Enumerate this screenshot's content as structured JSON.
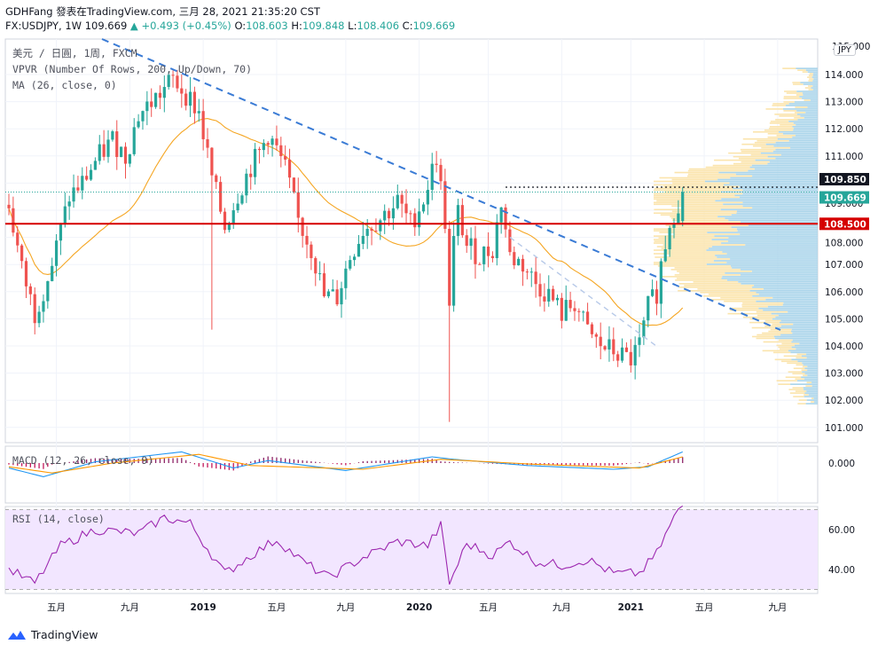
{
  "header": {
    "line1": "GDHFang 發表在TradingView.com, 三月 28, 2021 21:35:20 CST",
    "symbol": "FX:USDJPY, 1W",
    "last": "109.669",
    "change": "+0.493 (+0.45%)",
    "o_label": "O:",
    "o": "108.603",
    "h_label": "H:",
    "h": "109.848",
    "l_label": "L:",
    "l": "108.406",
    "c_label": "C:",
    "c": "109.669"
  },
  "legend": {
    "main": "美元 / 日圓, 1周, FXCM",
    "vpvr": "VPVR (Number Of Rows, 200, Up/Down, 70)",
    "ma": "MA (26, close, 0)",
    "macd": "MACD (12, 26, close, 9)",
    "rsi": "RSI (14, close)"
  },
  "currency_badge": "JPY",
  "brand": "TradingView",
  "colors": {
    "up": "#26a69a",
    "down": "#ef5350",
    "ma": "#f5a623",
    "trend": "#3a7bd5",
    "support": "#d50000",
    "rsi": "#9c27b0",
    "rsi_band": "#f2e6ff",
    "macd": "#2196f3",
    "signal": "#ff9800",
    "vpvr_up": "#a9d4ea",
    "vpvr_down": "#fbe4ac"
  },
  "chart_data": [
    {
      "type": "candlestick",
      "title": "美元 / 日圓, 1周, FXCM",
      "ylim": [
        100.4,
        115.1
      ],
      "y_ticks": [
        "101.000",
        "102.000",
        "103.000",
        "104.000",
        "105.000",
        "106.000",
        "107.000",
        "108.000",
        "109.000",
        "110.000",
        "111.000",
        "112.000",
        "113.000",
        "114.000"
      ],
      "x_ticks": [
        "五月",
        "九月",
        "2019",
        "五月",
        "九月",
        "2020",
        "五月",
        "九月",
        "2021",
        "五月",
        "九月"
      ],
      "price_labels": [
        {
          "value": 109.85,
          "text": "109.850",
          "color": "#131722"
        },
        {
          "value": 109.669,
          "text": "109.669",
          "color": "#26a69a"
        },
        {
          "value": 108.5,
          "text": "108.500",
          "color": "#d50000"
        }
      ],
      "support_level": 108.5,
      "anchors": [
        {
          "week": 0,
          "close": 109.2
        },
        {
          "week": 3,
          "close": 106.8
        },
        {
          "week": 6,
          "close": 105.2
        },
        {
          "week": 10,
          "close": 107.0
        },
        {
          "week": 14,
          "close": 109.5
        },
        {
          "week": 17,
          "close": 110.0
        },
        {
          "week": 20,
          "close": 110.8
        },
        {
          "week": 24,
          "close": 111.6
        },
        {
          "week": 27,
          "close": 111.0
        },
        {
          "week": 30,
          "close": 112.5
        },
        {
          "week": 35,
          "close": 113.3
        },
        {
          "week": 38,
          "close": 113.8
        },
        {
          "week": 41,
          "close": 113.3
        },
        {
          "week": 44,
          "close": 112.6
        },
        {
          "week": 47,
          "close": 110.2
        },
        {
          "week": 50,
          "close": 108.4
        },
        {
          "week": 53,
          "close": 109.6
        },
        {
          "week": 56,
          "close": 110.6
        },
        {
          "week": 58,
          "close": 111.1
        },
        {
          "week": 60,
          "close": 111.8
        },
        {
          "week": 62,
          "close": 111.2
        },
        {
          "week": 64,
          "close": 110.5
        },
        {
          "week": 67,
          "close": 108.6
        },
        {
          "week": 70,
          "close": 107.6
        },
        {
          "week": 73,
          "close": 105.8
        },
        {
          "week": 76,
          "close": 105.8
        },
        {
          "week": 79,
          "close": 107.3
        },
        {
          "week": 82,
          "close": 108.3
        },
        {
          "week": 86,
          "close": 108.7
        },
        {
          "week": 90,
          "close": 109.3
        },
        {
          "week": 93,
          "close": 108.5
        },
        {
          "week": 96,
          "close": 109.4
        },
        {
          "week": 99,
          "close": 111.0
        },
        {
          "week": 101,
          "close": 108.6
        },
        {
          "week": 102,
          "close": 105.3
        },
        {
          "week": 103,
          "close": 107.8
        },
        {
          "week": 104,
          "close": 108.9
        },
        {
          "week": 106,
          "close": 107.7
        },
        {
          "week": 109,
          "close": 107.3
        },
        {
          "week": 112,
          "close": 107.6
        },
        {
          "week": 114,
          "close": 109.3
        },
        {
          "week": 116,
          "close": 107.3
        },
        {
          "week": 119,
          "close": 107.0
        },
        {
          "week": 122,
          "close": 106.3
        },
        {
          "week": 125,
          "close": 105.9
        },
        {
          "week": 128,
          "close": 105.2
        },
        {
          "week": 131,
          "close": 105.6
        },
        {
          "week": 134,
          "close": 104.5
        },
        {
          "week": 137,
          "close": 104.0
        },
        {
          "week": 140,
          "close": 103.8
        },
        {
          "week": 142,
          "close": 103.6
        },
        {
          "week": 144,
          "close": 103.5
        },
        {
          "week": 146,
          "close": 104.0
        },
        {
          "week": 148,
          "close": 105.4
        },
        {
          "week": 150,
          "close": 106.0
        },
        {
          "week": 151,
          "close": 107.0
        },
        {
          "week": 153,
          "close": 108.6
        },
        {
          "week": 156,
          "close": 109.669
        }
      ],
      "current": {
        "open": 108.603,
        "high": 109.848,
        "low": 108.406,
        "close": 109.669
      }
    },
    {
      "type": "line",
      "title": "MACD (12, 26, close, 9)",
      "y_ticks": [
        "0.000"
      ],
      "series": [
        {
          "name": "MACD",
          "anchors": [
            {
              "week": 0,
              "value": -0.4
            },
            {
              "week": 8,
              "value": -1.1
            },
            {
              "week": 20,
              "value": 0.1
            },
            {
              "week": 40,
              "value": 0.9
            },
            {
              "week": 52,
              "value": -0.4
            },
            {
              "week": 60,
              "value": 0.2
            },
            {
              "week": 78,
              "value": -0.6
            },
            {
              "week": 98,
              "value": 0.5
            },
            {
              "week": 103,
              "value": 0.3
            },
            {
              "week": 120,
              "value": -0.2
            },
            {
              "week": 140,
              "value": -0.5
            },
            {
              "week": 148,
              "value": -0.3
            },
            {
              "week": 156,
              "value": 0.9
            }
          ]
        },
        {
          "name": "Signal",
          "anchors": [
            {
              "week": 0,
              "value": -0.3
            },
            {
              "week": 10,
              "value": -0.8
            },
            {
              "week": 24,
              "value": 0.0
            },
            {
              "week": 44,
              "value": 0.7
            },
            {
              "week": 56,
              "value": -0.2
            },
            {
              "week": 82,
              "value": -0.5
            },
            {
              "week": 100,
              "value": 0.3
            },
            {
              "week": 122,
              "value": -0.1
            },
            {
              "week": 146,
              "value": -0.4
            },
            {
              "week": 156,
              "value": 0.5
            }
          ]
        }
      ]
    },
    {
      "type": "line",
      "title": "RSI (14, close)",
      "ylim": [
        25,
        75
      ],
      "y_ticks": [
        "40.00",
        "60.00"
      ],
      "band": [
        30,
        70
      ],
      "anchors": [
        {
          "week": 0,
          "value": 40
        },
        {
          "week": 6,
          "value": 33
        },
        {
          "week": 12,
          "value": 52
        },
        {
          "week": 20,
          "value": 60
        },
        {
          "week": 30,
          "value": 58
        },
        {
          "week": 36,
          "value": 66
        },
        {
          "week": 42,
          "value": 63
        },
        {
          "week": 50,
          "value": 38
        },
        {
          "week": 56,
          "value": 47
        },
        {
          "week": 62,
          "value": 55
        },
        {
          "week": 68,
          "value": 44
        },
        {
          "week": 74,
          "value": 36
        },
        {
          "week": 82,
          "value": 46
        },
        {
          "week": 90,
          "value": 54
        },
        {
          "week": 97,
          "value": 52
        },
        {
          "week": 100,
          "value": 62
        },
        {
          "week": 102,
          "value": 33
        },
        {
          "week": 106,
          "value": 53
        },
        {
          "week": 112,
          "value": 47
        },
        {
          "week": 116,
          "value": 54
        },
        {
          "week": 122,
          "value": 44
        },
        {
          "week": 128,
          "value": 42
        },
        {
          "week": 134,
          "value": 45
        },
        {
          "week": 140,
          "value": 38
        },
        {
          "week": 146,
          "value": 38
        },
        {
          "week": 150,
          "value": 48
        },
        {
          "week": 154,
          "value": 66
        },
        {
          "week": 156,
          "value": 72
        }
      ]
    }
  ]
}
